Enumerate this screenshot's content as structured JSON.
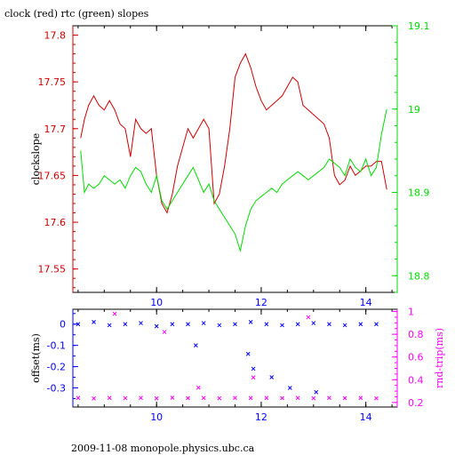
{
  "figure": {
    "title": "clock (red) rtc (green) slopes",
    "footer": "2009-11-08 monopole.physics.ubc.ca"
  },
  "colors": {
    "clock": "#d00000",
    "rtc": "#00dd00",
    "offset": "#0000ff",
    "rndtrip": "#ff00ff",
    "axis": "#000000"
  },
  "chart_data": [
    {
      "type": "line",
      "title": "clock (red) rtc (green) slopes",
      "xlabel": "",
      "ylabel": "clockslope",
      "xlim": [
        8.4,
        14.6
      ],
      "ylim": [
        17.525,
        17.81
      ],
      "y2lim": [
        18.78,
        19.1
      ],
      "x_ticks": [
        10,
        12,
        14
      ],
      "y_ticks": [
        17.55,
        17.6,
        17.65,
        17.7,
        17.75,
        17.8
      ],
      "y2_ticks": [
        18.8,
        18.9,
        19,
        19.1
      ],
      "y2_tick_labels": [
        "18.8",
        "18.9",
        "19",
        "19.1"
      ],
      "series": [
        {
          "axis": "left",
          "color": "#d00000",
          "x": [
            8.55,
            8.62,
            8.7,
            8.8,
            8.9,
            9.0,
            9.1,
            9.2,
            9.3,
            9.4,
            9.5,
            9.6,
            9.7,
            9.8,
            9.9,
            10.0,
            10.1,
            10.2,
            10.3,
            10.4,
            10.5,
            10.6,
            10.7,
            10.8,
            10.9,
            11.0,
            11.1,
            11.2,
            11.3,
            11.4,
            11.5,
            11.6,
            11.7,
            11.8,
            11.9,
            12.0,
            12.1,
            12.2,
            12.3,
            12.4,
            12.5,
            12.6,
            12.7,
            12.8,
            12.9,
            13.0,
            13.1,
            13.2,
            13.3,
            13.4,
            13.5,
            13.6,
            13.7,
            13.8,
            13.9,
            14.0,
            14.1,
            14.2,
            14.3,
            14.4
          ],
          "y": [
            17.69,
            17.71,
            17.725,
            17.735,
            17.725,
            17.72,
            17.73,
            17.72,
            17.705,
            17.7,
            17.67,
            17.71,
            17.7,
            17.695,
            17.7,
            17.65,
            17.62,
            17.61,
            17.63,
            17.66,
            17.68,
            17.7,
            17.69,
            17.7,
            17.71,
            17.7,
            17.62,
            17.63,
            17.66,
            17.7,
            17.755,
            17.77,
            17.78,
            17.765,
            17.745,
            17.73,
            17.72,
            17.725,
            17.73,
            17.735,
            17.745,
            17.755,
            17.75,
            17.725,
            17.72,
            17.715,
            17.71,
            17.705,
            17.69,
            17.65,
            17.64,
            17.645,
            17.66,
            17.65,
            17.655,
            17.66,
            17.66,
            17.665,
            17.665,
            17.635
          ]
        },
        {
          "axis": "right",
          "color": "#00dd00",
          "x": [
            8.55,
            8.62,
            8.7,
            8.8,
            8.9,
            9.0,
            9.1,
            9.2,
            9.3,
            9.4,
            9.5,
            9.6,
            9.7,
            9.8,
            9.9,
            10.0,
            10.1,
            10.2,
            10.3,
            10.4,
            10.5,
            10.6,
            10.7,
            10.8,
            10.9,
            11.0,
            11.1,
            11.2,
            11.3,
            11.4,
            11.5,
            11.6,
            11.7,
            11.8,
            11.9,
            12.0,
            12.1,
            12.2,
            12.3,
            12.4,
            12.5,
            12.6,
            12.7,
            12.8,
            12.9,
            13.0,
            13.1,
            13.2,
            13.3,
            13.4,
            13.5,
            13.6,
            13.7,
            13.8,
            13.9,
            14.0,
            14.1,
            14.2,
            14.3,
            14.4
          ],
          "y": [
            18.95,
            18.9,
            18.91,
            18.905,
            18.91,
            18.92,
            18.915,
            18.91,
            18.915,
            18.905,
            18.92,
            18.93,
            18.925,
            18.91,
            18.9,
            18.92,
            18.89,
            18.88,
            18.89,
            18.9,
            18.91,
            18.92,
            18.93,
            18.915,
            18.9,
            18.91,
            18.89,
            18.88,
            18.87,
            18.86,
            18.85,
            18.83,
            18.86,
            18.88,
            18.89,
            18.895,
            18.9,
            18.905,
            18.9,
            18.91,
            18.915,
            18.92,
            18.925,
            18.92,
            18.915,
            18.92,
            18.925,
            18.93,
            18.94,
            18.935,
            18.93,
            18.92,
            18.94,
            18.93,
            18.925,
            18.94,
            18.92,
            18.93,
            18.97,
            19.0
          ]
        }
      ]
    },
    {
      "type": "scatter",
      "xlabel": "",
      "ylabel": "offset(ms)",
      "y2label": "rnd-trip(ms)",
      "xlim": [
        8.4,
        14.6
      ],
      "ylim": [
        -0.39,
        0.07
      ],
      "y2lim": [
        0.16,
        1.02
      ],
      "x_ticks": [
        10,
        12,
        14
      ],
      "y_ticks": [
        0,
        -0.1,
        -0.2,
        -0.3
      ],
      "y2_ticks": [
        0.2,
        0.4,
        0.6,
        0.8,
        1
      ],
      "y2_tick_labels": [
        "0.2",
        "0.4",
        "0.6",
        "0.8",
        "1"
      ],
      "series": [
        {
          "axis": "left",
          "color": "#0000ff",
          "x": [
            8.5,
            8.8,
            9.1,
            9.4,
            9.7,
            10.0,
            10.3,
            10.6,
            10.9,
            11.2,
            11.5,
            11.8,
            12.1,
            12.4,
            12.7,
            13.0,
            13.3,
            13.6,
            13.9,
            14.2,
            10.75,
            11.75,
            11.85,
            12.2,
            12.55,
            13.05
          ],
          "y": [
            0.0,
            0.01,
            -0.005,
            0.0,
            0.005,
            -0.01,
            0.0,
            0.0,
            0.005,
            -0.005,
            0.0,
            0.01,
            0.0,
            -0.005,
            0.0,
            0.005,
            0.0,
            -0.005,
            0.0,
            0.0,
            -0.1,
            -0.14,
            -0.21,
            -0.25,
            -0.3,
            -0.32
          ]
        },
        {
          "axis": "right",
          "color": "#ff00ff",
          "x": [
            8.5,
            8.8,
            9.1,
            9.4,
            9.7,
            10.0,
            10.3,
            10.6,
            10.9,
            11.2,
            11.5,
            11.8,
            12.1,
            12.4,
            12.7,
            13.0,
            13.3,
            13.6,
            13.9,
            14.2,
            9.2,
            10.15,
            10.8,
            11.85,
            12.9
          ],
          "y": [
            0.24,
            0.235,
            0.24,
            0.238,
            0.24,
            0.236,
            0.242,
            0.238,
            0.24,
            0.237,
            0.24,
            0.239,
            0.24,
            0.238,
            0.24,
            0.237,
            0.24,
            0.238,
            0.24,
            0.236,
            0.98,
            0.82,
            0.33,
            0.42,
            0.95
          ]
        }
      ]
    }
  ]
}
